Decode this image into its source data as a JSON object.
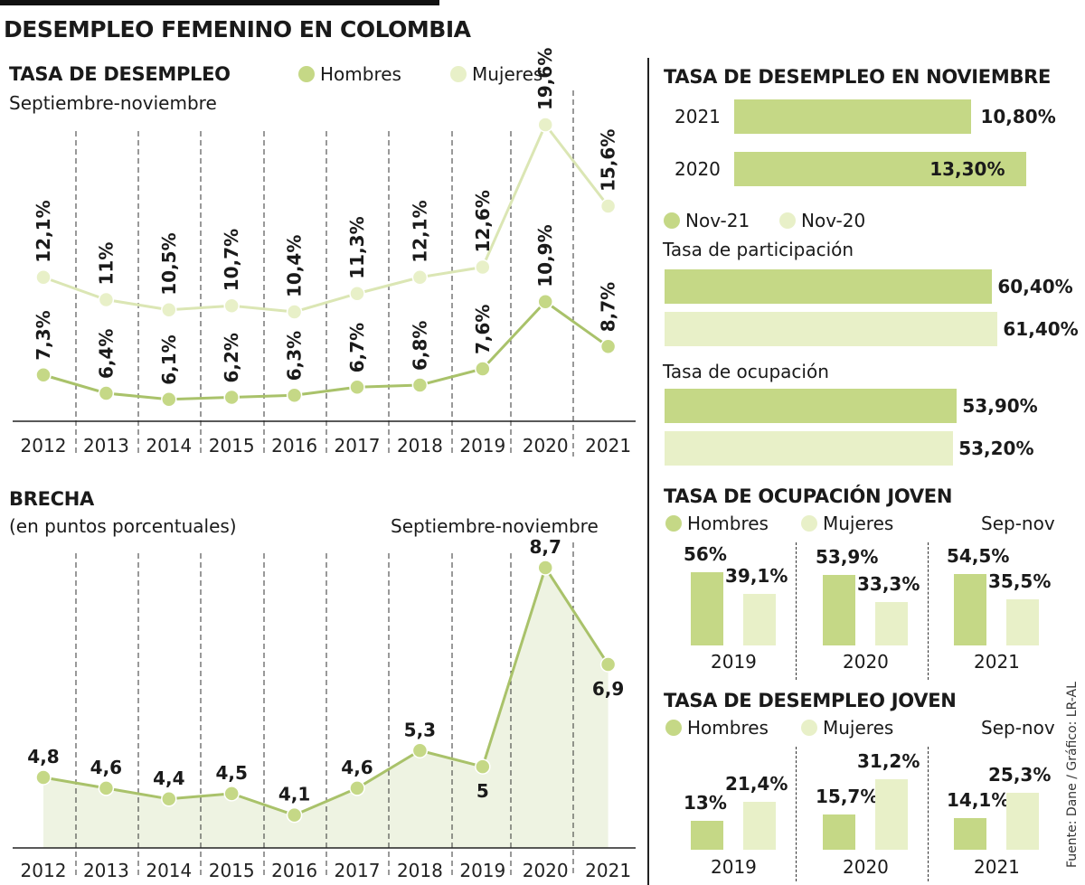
{
  "title": "DESEMPLEO FEMENINO EN COLOMBIA",
  "source": "Fuente: Dane / Gráfico: LR-AL",
  "colors": {
    "hombres": "#c5d886",
    "hombres_stroke": "#a9c26a",
    "mujeres": "#e8f0c8",
    "mujeres_stroke": "#dbe6b4",
    "area": "#eef3e2",
    "text": "#1a1a1a"
  },
  "chart_data": [
    {
      "id": "tasa_desempleo",
      "type": "line",
      "title": "TASA DE DESEMPLEO",
      "subtitle": "Septiembre-noviembre",
      "legend": [
        "Hombres",
        "Mujeres"
      ],
      "x": [
        "2012",
        "2013",
        "2014",
        "2015",
        "2016",
        "2017",
        "2018",
        "2019",
        "2020",
        "2021"
      ],
      "series": [
        {
          "name": "Hombres",
          "values": [
            7.3,
            6.4,
            6.1,
            6.2,
            6.3,
            6.7,
            6.8,
            7.6,
            10.9,
            8.7
          ],
          "labels": [
            "7,3%",
            "6,4%",
            "6,1%",
            "6,2%",
            "6,3%",
            "6,7%",
            "6,8%",
            "7,6%",
            "10,9%",
            "8,7%"
          ]
        },
        {
          "name": "Mujeres",
          "values": [
            12.1,
            11,
            10.5,
            10.7,
            10.4,
            11.3,
            12.1,
            12.6,
            19.6,
            15.6
          ],
          "labels": [
            "12,1%",
            "11%",
            "10,5%",
            "10,7%",
            "10,4%",
            "11,3%",
            "12,1%",
            "12,6%",
            "19,6%",
            "15,6%"
          ]
        }
      ]
    },
    {
      "id": "brecha",
      "type": "area",
      "title": "BRECHA",
      "subtitle": "(en puntos porcentuales)",
      "note": "Septiembre-noviembre",
      "x": [
        "2012",
        "2013",
        "2014",
        "2015",
        "2016",
        "2017",
        "2018",
        "2019",
        "2020",
        "2021"
      ],
      "values": [
        4.8,
        4.6,
        4.4,
        4.5,
        4.1,
        4.6,
        5.3,
        5,
        8.7,
        6.9
      ],
      "labels": [
        "4,8",
        "4,6",
        "4,4",
        "4,5",
        "4,1",
        "4,6",
        "5,3",
        "5",
        "8,7",
        "6,9"
      ]
    },
    {
      "id": "noviembre",
      "type": "bar",
      "title": "TASA DE DESEMPLEO EN NOVIEMBRE",
      "categories": [
        "2021",
        "2020"
      ],
      "values": [
        10.8,
        13.3
      ],
      "labels": [
        "10,80%",
        "13,30%"
      ]
    },
    {
      "id": "participacion_ocupacion",
      "type": "bar",
      "legend": [
        "Nov-21",
        "Nov-20"
      ],
      "groups": [
        {
          "title": "Tasa de participación",
          "values": [
            60.4,
            61.4
          ],
          "labels": [
            "60,40%",
            "61,40%"
          ]
        },
        {
          "title": "Tasa de ocupación",
          "values": [
            53.9,
            53.2
          ],
          "labels": [
            "53,90%",
            "53,20%"
          ]
        }
      ]
    },
    {
      "id": "ocupacion_joven",
      "type": "bar",
      "title": "TASA DE OCUPACIÓN JOVEN",
      "legend": [
        "Hombres",
        "Mujeres"
      ],
      "note": "Sep-nov",
      "categories": [
        "2019",
        "2020",
        "2021"
      ],
      "series": [
        {
          "name": "Hombres",
          "values": [
            56,
            53.9,
            54.5
          ],
          "labels": [
            "56%",
            "53,9%",
            "54,5%"
          ]
        },
        {
          "name": "Mujeres",
          "values": [
            39.1,
            33.3,
            35.5
          ],
          "labels": [
            "39,1%",
            "33,3%",
            "35,5%"
          ]
        }
      ]
    },
    {
      "id": "desempleo_joven",
      "type": "bar",
      "title": "TASA DE DESEMPLEO JOVEN",
      "legend": [
        "Hombres",
        "Mujeres"
      ],
      "note": "Sep-nov",
      "categories": [
        "2019",
        "2020",
        "2021"
      ],
      "series": [
        {
          "name": "Hombres",
          "values": [
            13,
            15.7,
            14.1
          ],
          "labels": [
            "13%",
            "15,7%",
            "14,1%"
          ]
        },
        {
          "name": "Mujeres",
          "values": [
            21.4,
            31.2,
            25.3
          ],
          "labels": [
            "21,4%",
            "31,2%",
            "25,3%"
          ]
        }
      ]
    }
  ]
}
